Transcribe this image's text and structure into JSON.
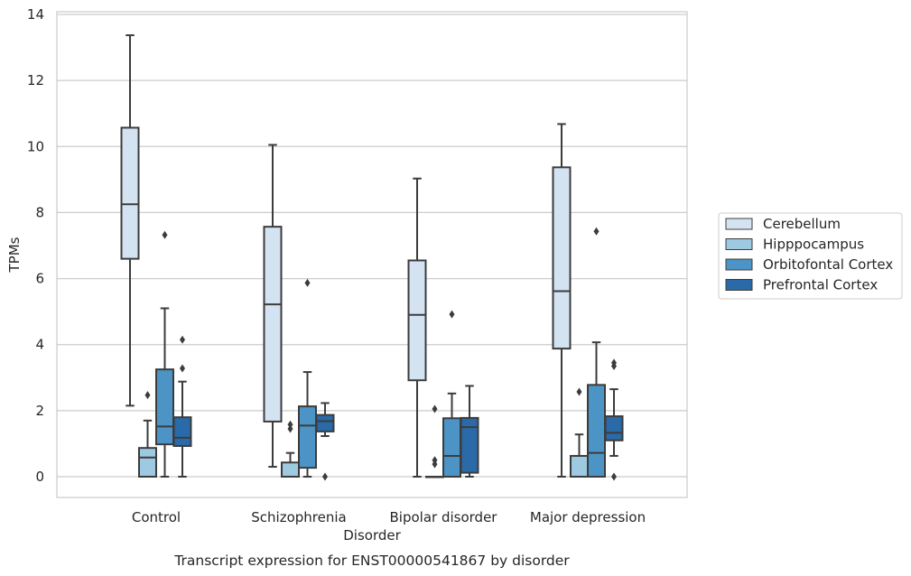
{
  "chart_data": {
    "type": "box",
    "title": "",
    "caption": "Transcript expression for ENST00000541867 by disorder",
    "xlabel": "Disorder",
    "ylabel": "TPMs",
    "ylim": [
      -0.6,
      14.1
    ],
    "yticks": [
      0,
      2,
      4,
      6,
      8,
      10,
      12,
      14
    ],
    "grid": "horizontal",
    "legend_position": "right",
    "categories": [
      "Control",
      "Schizophrenia",
      "Bipolar disorder",
      "Major depression"
    ],
    "series": [
      {
        "name": "Cerebellum",
        "color": "#d4e3f2",
        "boxes": [
          {
            "whislo": 2.15,
            "q1": 6.6,
            "med": 8.25,
            "q3": 10.57,
            "whishi": 13.37,
            "fliers": []
          },
          {
            "whislo": 0.3,
            "q1": 1.67,
            "med": 5.22,
            "q3": 7.57,
            "whishi": 10.05,
            "fliers": []
          },
          {
            "whislo": 0.0,
            "q1": 2.92,
            "med": 4.9,
            "q3": 6.55,
            "whishi": 9.03,
            "fliers": []
          },
          {
            "whislo": 0.0,
            "q1": 3.88,
            "med": 5.62,
            "q3": 9.37,
            "whishi": 10.68,
            "fliers": []
          }
        ]
      },
      {
        "name": "Hipppocampus",
        "color": "#9ecae1",
        "boxes": [
          {
            "whislo": 0.0,
            "q1": 0.0,
            "med": 0.58,
            "q3": 0.87,
            "whishi": 1.7,
            "fliers": [
              2.47
            ]
          },
          {
            "whislo": 0.0,
            "q1": 0.0,
            "med": 0.0,
            "q3": 0.43,
            "whishi": 0.72,
            "fliers": [
              1.45,
              1.58
            ]
          },
          {
            "whislo": 0.0,
            "q1": 0.0,
            "med": 0.0,
            "q3": 0.0,
            "whishi": 0.0,
            "fliers": [
              0.38,
              0.5,
              2.05
            ]
          },
          {
            "whislo": 0.0,
            "q1": 0.0,
            "med": 0.0,
            "q3": 0.63,
            "whishi": 1.28,
            "fliers": [
              2.57
            ]
          }
        ]
      },
      {
        "name": "Orbitofontal Cortex",
        "color": "#4c94c5",
        "boxes": [
          {
            "whislo": 0.0,
            "q1": 0.98,
            "med": 1.52,
            "q3": 3.25,
            "whishi": 5.1,
            "fliers": [
              7.32
            ]
          },
          {
            "whislo": 0.0,
            "q1": 0.27,
            "med": 1.55,
            "q3": 2.13,
            "whishi": 3.17,
            "fliers": [
              5.87
            ]
          },
          {
            "whislo": 0.0,
            "q1": 0.0,
            "med": 0.63,
            "q3": 1.77,
            "whishi": 2.52,
            "fliers": [
              4.92
            ]
          },
          {
            "whislo": 0.0,
            "q1": 0.0,
            "med": 0.72,
            "q3": 2.78,
            "whishi": 4.07,
            "fliers": [
              7.43
            ]
          }
        ]
      },
      {
        "name": "Prefrontal Cortex",
        "color": "#2a6aa9",
        "boxes": [
          {
            "whislo": 0.0,
            "q1": 0.93,
            "med": 1.18,
            "q3": 1.8,
            "whishi": 2.88,
            "fliers": [
              3.28,
              4.15
            ]
          },
          {
            "whislo": 1.23,
            "q1": 1.37,
            "med": 1.68,
            "q3": 1.87,
            "whishi": 2.23,
            "fliers": [
              0.0
            ]
          },
          {
            "whislo": 0.0,
            "q1": 0.12,
            "med": 1.5,
            "q3": 1.78,
            "whishi": 2.75,
            "fliers": []
          },
          {
            "whislo": 0.63,
            "q1": 1.1,
            "med": 1.33,
            "q3": 1.83,
            "whishi": 2.65,
            "fliers": [
              0.0,
              3.35,
              3.45
            ]
          }
        ]
      }
    ]
  }
}
